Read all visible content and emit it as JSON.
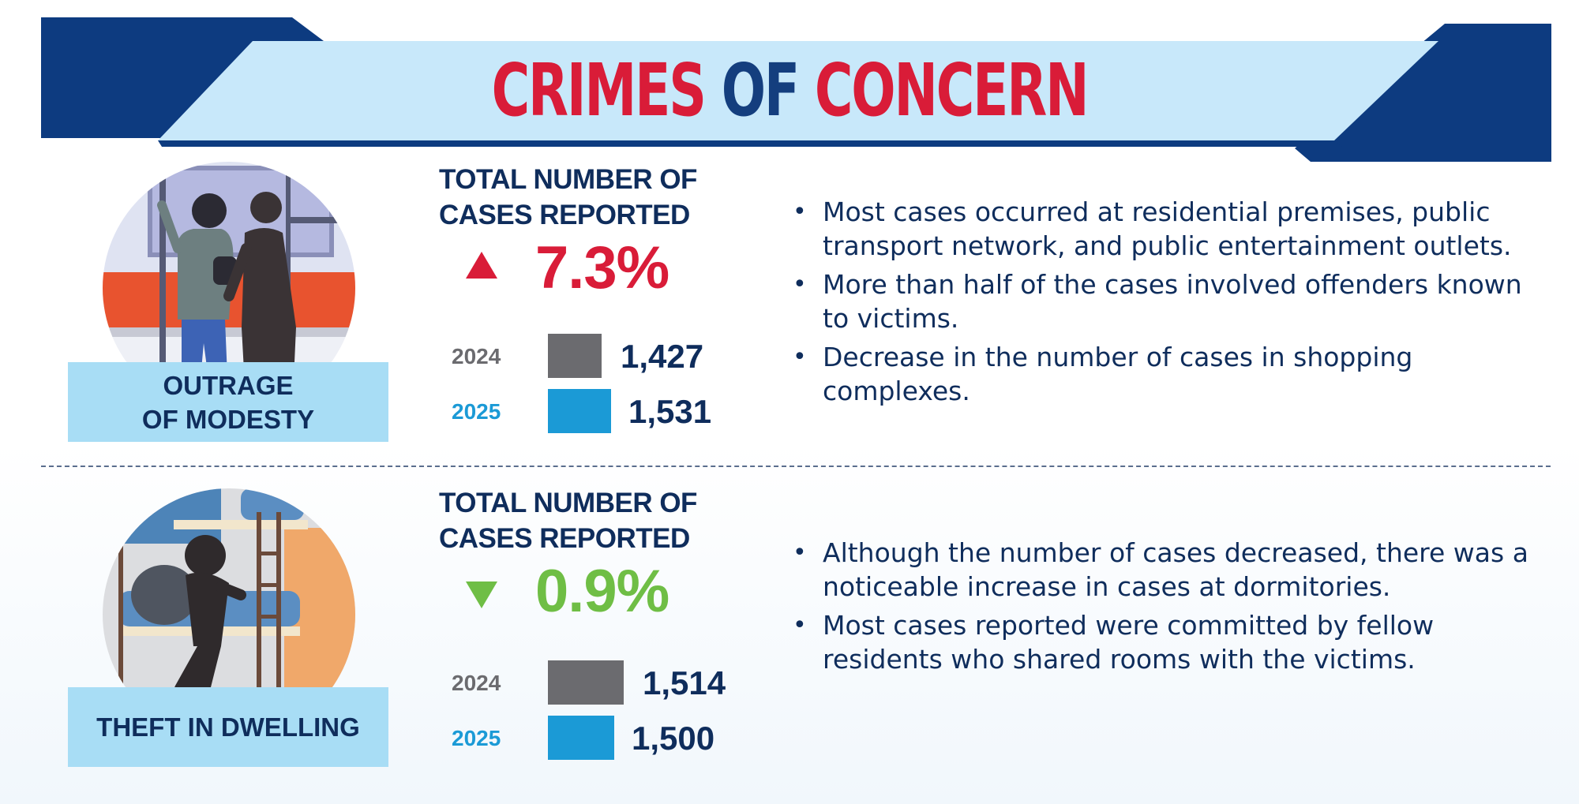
{
  "banner": {
    "title_part1": "CRIMES",
    "title_part2": "OF",
    "title_part3": "CONCERN"
  },
  "colors": {
    "navy": "#0f2d5c",
    "banner_light": "#c8e8fa",
    "banner_dark": "#0d3b80",
    "increase_red": "#d91c38",
    "decrease_green": "#6fbe45",
    "bar_2024": "#6b6b6f",
    "bar_2025": "#1b9ad6",
    "label_bg": "#a8ddf5"
  },
  "sections": [
    {
      "crime": "OUTRAGE\nOF MODESTY",
      "icon": "commuter-harassment-illustration",
      "total_title": "TOTAL NUMBER OF\nCASES REPORTED",
      "change": {
        "direction": "up",
        "icon": "triangle-up-icon",
        "value": "7.3%"
      },
      "years": [
        {
          "year": "2024",
          "count": "1,427",
          "value": 1427
        },
        {
          "year": "2025",
          "count": "1,531",
          "value": 1531
        }
      ],
      "bullets": [
        "Most cases occurred at residential premises, public transport network, and public entertainment outlets.",
        "More than half of the cases involved offenders known to victims.",
        "Decrease in the number of cases in shopping complexes."
      ]
    },
    {
      "crime": "THEFT IN DWELLING",
      "icon": "dormitory-thief-illustration",
      "total_title": "TOTAL NUMBER OF\nCASES REPORTED",
      "change": {
        "direction": "down",
        "icon": "triangle-down-icon",
        "value": "0.9%"
      },
      "years": [
        {
          "year": "2024",
          "count": "1,514",
          "value": 1514
        },
        {
          "year": "2025",
          "count": "1,500",
          "value": 1500
        }
      ],
      "bullets": [
        "Although the number of cases decreased, there was a noticeable increase in cases at dormitories.",
        "Most cases reported were committed by fellow residents who shared rooms with the victims."
      ]
    }
  ]
}
